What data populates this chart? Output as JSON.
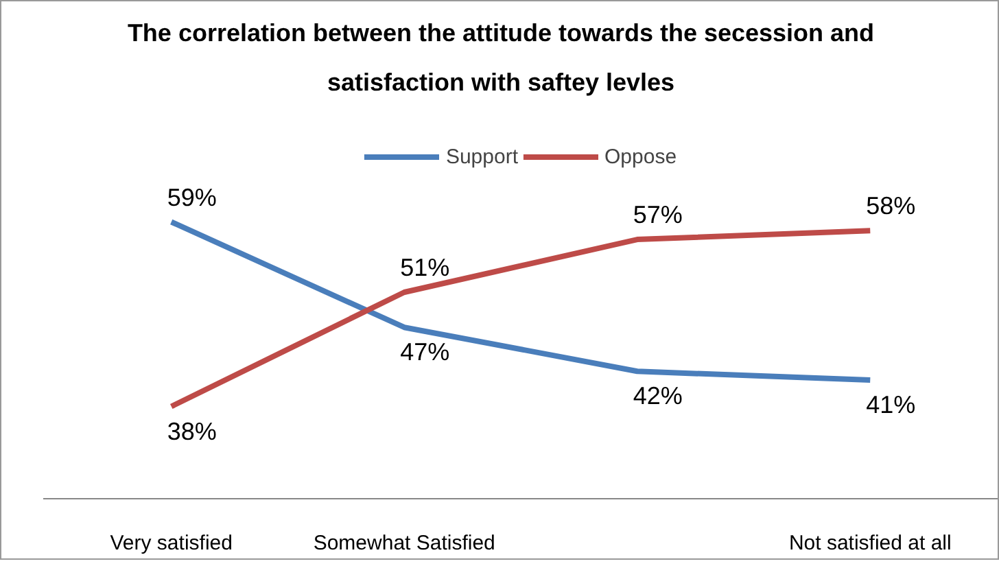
{
  "chart_data": {
    "type": "line",
    "title": "The correlation between the attitude towards the secession  and satisfaction with saftey levles",
    "categories": [
      "Very satisfied",
      "Somewhat Satisfied",
      null,
      "Not satisfied at all"
    ],
    "series": [
      {
        "name": "Support",
        "color": "#4a7ebb",
        "values": [
          59,
          47,
          42,
          41
        ],
        "value_labels": [
          "59%",
          "47%",
          "42%",
          "41%"
        ]
      },
      {
        "name": "Oppose",
        "color": "#be4b48",
        "values": [
          38,
          51,
          57,
          58
        ],
        "value_labels": [
          "38%",
          "51%",
          "57%",
          "58%"
        ]
      }
    ],
    "tick_labels": "x",
    "legend": "top",
    "grid": false,
    "marker": "none",
    "line_style": "solid"
  }
}
